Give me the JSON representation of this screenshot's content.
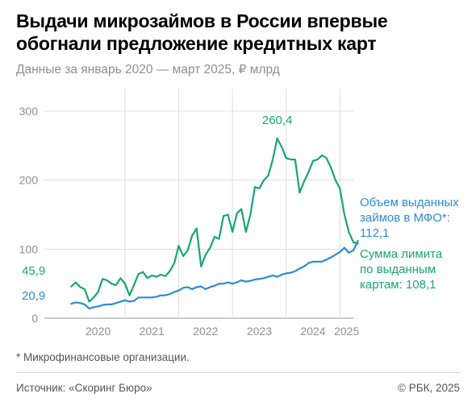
{
  "title": "Выдачи микрозаймов в России впервые обогнали предложение кредитных карт",
  "subtitle": "Данные за январь 2020 — март 2025, ₽ млрд",
  "footnote": "* Микрофинансовые организации.",
  "source": "Источник: «Скоринг Бюро»",
  "copyright": "© РБК, 2025",
  "colors": {
    "mfo": "#2b8bd6",
    "cards": "#17a673",
    "grid": "#dcdcdc",
    "axis": "#9a9a9a",
    "text": "#8f8f8f"
  },
  "chart_data": {
    "type": "line",
    "x_start": "2020-01",
    "x_end": "2025-03",
    "xlim": [
      "2019-07",
      "2025-04"
    ],
    "ylim": [
      0,
      300
    ],
    "yticks": [
      0,
      100,
      200,
      300
    ],
    "xtick_labels": [
      "2020",
      "2021",
      "2022",
      "2023",
      "2024",
      "2025"
    ],
    "grid": true,
    "series": [
      {
        "name": "Сумма лимита по выданным картам",
        "label_lines": [
          "Сумма лимита",
          "по выданным",
          "картам: 108,1"
        ],
        "start_label": "45,9",
        "peak_label": "260,4",
        "values": [
          45.9,
          52,
          45,
          42,
          24,
          30,
          38,
          57,
          55,
          50,
          48,
          58,
          50,
          33,
          48,
          64,
          67,
          58,
          62,
          60,
          63,
          61,
          68,
          80,
          105,
          90,
          98,
          120,
          130,
          75,
          92,
          102,
          118,
          115,
          148,
          150,
          125,
          152,
          158,
          125,
          150,
          190,
          188,
          200,
          207,
          230,
          260.4,
          248,
          232,
          230,
          230,
          182,
          198,
          212,
          228,
          230,
          236,
          232,
          218,
          200,
          188,
          150,
          125,
          110,
          108.1
        ]
      },
      {
        "name": "Объем выданных займов в МФО*",
        "label_lines": [
          "Объем выданных",
          "займов в МФО*:",
          "112,1"
        ],
        "start_label": "20,9",
        "values": [
          20.9,
          23,
          22,
          20,
          14,
          16,
          17,
          19,
          20,
          20,
          22,
          24,
          26,
          24,
          25,
          30,
          30,
          30,
          30,
          31,
          33,
          33,
          35,
          38,
          40,
          44,
          45,
          42,
          45,
          46,
          42,
          45,
          47,
          50,
          50,
          52,
          50,
          52,
          55,
          53,
          54,
          56,
          57,
          58,
          60,
          62,
          60,
          63,
          65,
          66,
          68,
          72,
          75,
          80,
          82,
          82,
          82,
          85,
          88,
          92,
          96,
          102,
          95,
          98,
          112.1
        ]
      }
    ]
  }
}
